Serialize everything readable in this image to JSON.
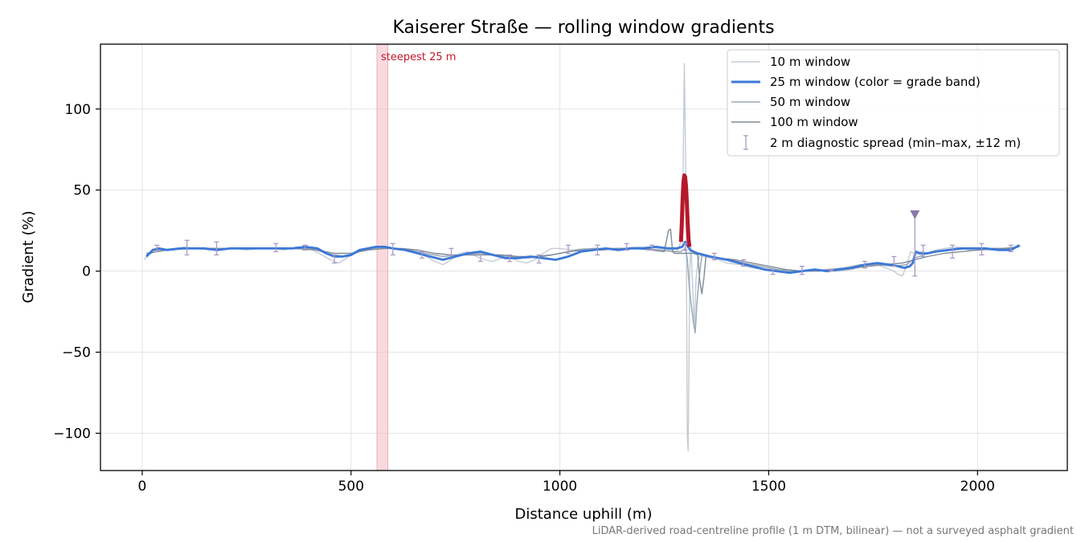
{
  "chart_data": {
    "type": "line",
    "title": "Kaiserer Straße — rolling window gradients",
    "xlabel": "Distance uphill (m)",
    "ylabel": "Gradient (%)",
    "xlim": [
      -100,
      2215
    ],
    "ylim": [
      -123,
      140
    ],
    "xticks": [
      0,
      500,
      1000,
      1500,
      2000
    ],
    "yticks": [
      -100,
      -50,
      0,
      50,
      100
    ],
    "xtick_labels": [
      "0",
      "500",
      "1000",
      "1500",
      "2000"
    ],
    "ytick_labels": [
      "−100",
      "−50",
      "0",
      "50",
      "100"
    ],
    "grid": true,
    "legend_position": "top-right",
    "colors": {
      "w10": "#c3ccd5",
      "w25": "#3b78d8",
      "w25_steep": "#b5182a",
      "w50": "#9aa8b6",
      "w100": "#7e8c99",
      "diagnostic": "#a99bc6",
      "highlight": "#f4c2c8",
      "marker": "#8a76a8"
    },
    "highlight_band": {
      "x0": 562,
      "x1": 588,
      "label": "steepest 25 m"
    },
    "series": [
      {
        "key": "w10",
        "name": "10 m window",
        "x": [
          5,
          20,
          35,
          50,
          75,
          100,
          130,
          160,
          190,
          220,
          250,
          280,
          310,
          340,
          370,
          400,
          430,
          450,
          470,
          490,
          510,
          540,
          570,
          600,
          630,
          660,
          680,
          700,
          720,
          740,
          760,
          780,
          800,
          820,
          840,
          860,
          880,
          900,
          920,
          940,
          960,
          980,
          1000,
          1030,
          1060,
          1090,
          1120,
          1150,
          1180,
          1210,
          1240,
          1265,
          1280,
          1290,
          1295,
          1298,
          1301,
          1303,
          1305,
          1307,
          1309,
          1311,
          1314,
          1318,
          1322,
          1326,
          1330,
          1335,
          1345,
          1360,
          1380,
          1400,
          1430,
          1460,
          1490,
          1520,
          1550,
          1580,
          1610,
          1640,
          1670,
          1700,
          1730,
          1760,
          1780,
          1800,
          1810,
          1820,
          1830,
          1840,
          1848,
          1855,
          1865,
          1880,
          1900,
          1920,
          1950,
          1980,
          2010,
          2040,
          2070,
          2090,
          2100,
          2105
        ],
        "y": [
          7,
          12,
          14,
          13,
          13,
          15,
          14,
          13,
          14,
          14,
          13,
          14,
          14,
          13,
          15,
          14,
          10,
          7,
          5,
          8,
          12,
          14,
          15,
          14,
          13,
          11,
          9,
          6,
          4,
          7,
          11,
          12,
          9,
          7,
          6,
          8,
          9,
          6,
          5,
          7,
          11,
          14,
          14,
          13,
          14,
          13,
          14,
          14,
          15,
          15,
          14,
          13,
          12,
          18,
          60,
          128,
          70,
          10,
          -100,
          -111,
          -60,
          0,
          15,
          -10,
          -35,
          -5,
          5,
          10,
          9,
          8,
          7,
          5,
          4,
          2,
          1,
          0,
          -1,
          0,
          1,
          0,
          0,
          1,
          3,
          4,
          2,
          0,
          -2,
          -3,
          3,
          12,
          11,
          12,
          12,
          11,
          13,
          14,
          15,
          13,
          13,
          13,
          14,
          14,
          16,
          15
        ]
      },
      {
        "key": "w25",
        "name": "25 m window (color = grade band)",
        "x": [
          10,
          25,
          40,
          60,
          90,
          120,
          150,
          180,
          210,
          240,
          270,
          300,
          330,
          360,
          390,
          420,
          440,
          460,
          480,
          500,
          520,
          540,
          560,
          580,
          600,
          630,
          660,
          690,
          720,
          750,
          780,
          810,
          840,
          870,
          900,
          930,
          960,
          990,
          1020,
          1050,
          1080,
          1110,
          1140,
          1170,
          1200,
          1230,
          1260,
          1280,
          1293,
          1297,
          1300,
          1303,
          1307,
          1312,
          1320,
          1330,
          1345,
          1360,
          1380,
          1400,
          1430,
          1460,
          1490,
          1520,
          1550,
          1580,
          1610,
          1640,
          1670,
          1700,
          1730,
          1760,
          1790,
          1810,
          1825,
          1838,
          1845,
          1852,
          1860,
          1880,
          1900,
          1930,
          1960,
          1990,
          2020,
          2050,
          2080,
          2100
        ],
        "y": [
          9,
          13,
          14,
          13,
          14,
          14,
          14,
          13,
          14,
          14,
          14,
          14,
          14,
          14,
          15,
          14,
          11,
          9,
          9,
          10,
          13,
          14,
          15,
          15,
          14,
          13,
          11,
          9,
          7,
          9,
          11,
          12,
          10,
          8,
          8,
          9,
          8,
          7,
          9,
          12,
          13,
          14,
          13,
          14,
          14,
          15,
          14,
          14,
          15,
          17,
          18,
          17,
          15,
          13,
          12,
          11,
          10,
          9,
          8,
          7,
          5,
          3,
          1,
          0,
          -1,
          0,
          1,
          0,
          1,
          2,
          4,
          5,
          4,
          3,
          2,
          3,
          5,
          12,
          11,
          11,
          12,
          13,
          14,
          14,
          14,
          13,
          13,
          16
        ]
      },
      {
        "key": "w50",
        "name": "50 m window",
        "x": [
          10,
          40,
          80,
          120,
          160,
          200,
          240,
          280,
          320,
          360,
          400,
          430,
          460,
          490,
          520,
          560,
          600,
          640,
          680,
          720,
          760,
          800,
          840,
          880,
          920,
          960,
          1000,
          1040,
          1080,
          1120,
          1160,
          1200,
          1240,
          1270,
          1290,
          1300,
          1305,
          1310,
          1315,
          1320,
          1324,
          1328,
          1333,
          1340,
          1355,
          1380,
          1410,
          1440,
          1480,
          1520,
          1560,
          1600,
          1640,
          1680,
          1720,
          1760,
          1800,
          1830,
          1850,
          1870,
          1900,
          1940,
          1980,
          2020,
          2060,
          2100
        ],
        "y": [
          10,
          13,
          14,
          14,
          14,
          14,
          14,
          14,
          14,
          14,
          14,
          12,
          10,
          9,
          12,
          14,
          14,
          13,
          11,
          9,
          10,
          11,
          10,
          9,
          8,
          9,
          11,
          13,
          14,
          14,
          14,
          14,
          13,
          12,
          12,
          14,
          8,
          -10,
          -22,
          -32,
          -38,
          -20,
          -5,
          10,
          9,
          8,
          7,
          5,
          3,
          1,
          0,
          0,
          1,
          2,
          4,
          4,
          3,
          4,
          8,
          10,
          12,
          13,
          14,
          14,
          14,
          15
        ]
      },
      {
        "key": "w100",
        "name": "100 m window",
        "x": [
          10,
          60,
          120,
          180,
          240,
          300,
          360,
          420,
          460,
          500,
          540,
          580,
          620,
          660,
          700,
          740,
          780,
          820,
          860,
          900,
          940,
          980,
          1020,
          1060,
          1100,
          1140,
          1180,
          1220,
          1250,
          1260,
          1265,
          1270,
          1275,
          1290,
          1310,
          1320,
          1330,
          1335,
          1340,
          1345,
          1350,
          1360,
          1380,
          1420,
          1460,
          1500,
          1540,
          1580,
          1620,
          1660,
          1700,
          1740,
          1780,
          1820,
          1850,
          1880,
          1920,
          1960,
          2000,
          2040,
          2080,
          2100
        ],
        "y": [
          11,
          13,
          14,
          14,
          14,
          14,
          14,
          13,
          11,
          11,
          13,
          14,
          14,
          13,
          11,
          10,
          10,
          10,
          10,
          9,
          9,
          10,
          12,
          13,
          13,
          14,
          14,
          13,
          12,
          25,
          26,
          12,
          11,
          11,
          11,
          11,
          10,
          -6,
          -14,
          -4,
          10,
          9,
          8,
          7,
          5,
          3,
          1,
          0,
          0,
          1,
          2,
          3,
          4,
          5,
          7,
          9,
          11,
          12,
          13,
          14,
          14,
          15
        ]
      }
    ],
    "w25_steep_segment": {
      "x": [
        1290,
        1292,
        1294,
        1296,
        1298,
        1300,
        1302,
        1304,
        1306,
        1308,
        1310
      ],
      "y": [
        18,
        30,
        45,
        55,
        59,
        58,
        52,
        42,
        30,
        20,
        15
      ]
    },
    "diagnostic_spread": {
      "name": "2 m diagnostic spread (min–max, ±12 m)",
      "x": [
        35,
        107,
        178,
        320,
        390,
        460,
        600,
        670,
        740,
        810,
        880,
        950,
        1020,
        1090,
        1160,
        1220,
        1300,
        1370,
        1440,
        1510,
        1580,
        1650,
        1730,
        1800,
        1870,
        1940,
        2010,
        2080
      ],
      "ymin": [
        12,
        10,
        10,
        12,
        13,
        5,
        10,
        8,
        10,
        6,
        6,
        5,
        11,
        10,
        13,
        13,
        13,
        7,
        3,
        -2,
        -2,
        0,
        2,
        3,
        9,
        8,
        10,
        12
      ],
      "ymax": [
        16,
        19,
        18,
        17,
        16,
        10,
        17,
        12,
        14,
        10,
        10,
        10,
        16,
        16,
        17,
        16,
        17,
        11,
        7,
        1,
        3,
        1,
        6,
        9,
        16,
        16,
        17,
        16
      ]
    },
    "extra_spread": {
      "x": 1850,
      "ymin": -3,
      "ymax": 35
    },
    "footnote": "LiDAR-derived road-centreline profile (1 m DTM, bilinear) — not a surveyed asphalt gradient"
  }
}
